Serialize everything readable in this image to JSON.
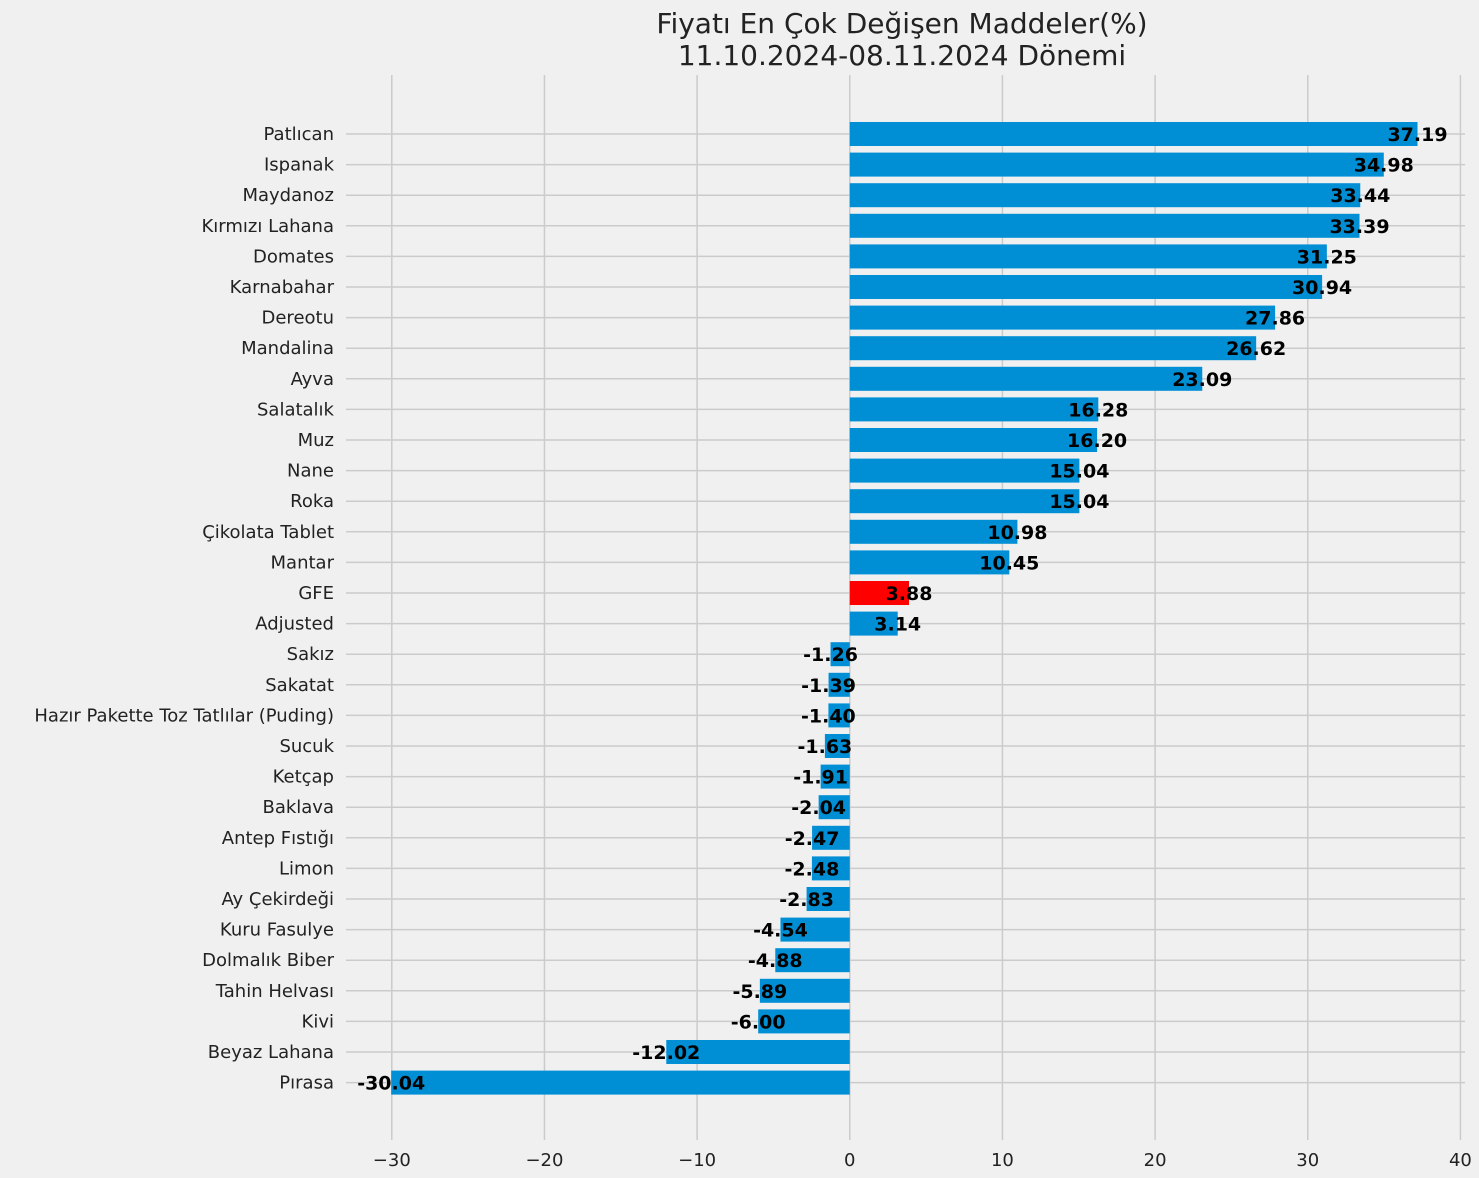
{
  "chart_data": {
    "type": "bar",
    "orientation": "horizontal",
    "title": "Fiyatı En Çok Değişen Maddeler(%)",
    "subtitle": "11.10.2024-08.11.2024 Dönemi",
    "xlabel": "",
    "ylabel": "",
    "xlim": [
      -33,
      40.3
    ],
    "xticks": [
      -30,
      -20,
      -10,
      0,
      10,
      20,
      30,
      40
    ],
    "xtick_labels": [
      "−30",
      "−20",
      "−10",
      "0",
      "10",
      "20",
      "30",
      "40"
    ],
    "grid": true,
    "colors": {
      "default": "#008fd5",
      "highlight": "#ff0000",
      "background": "#f0f0f0",
      "grid": "#cbcbcb"
    },
    "categories": [
      "Patlıcan",
      "Ispanak",
      "Maydanoz",
      "Kırmızı Lahana",
      "Domates",
      "Karnabahar",
      "Dereotu",
      "Mandalina",
      "Ayva",
      "Salatalık",
      "Muz",
      "Nane",
      "Roka",
      "Çikolata Tablet",
      "Mantar",
      "GFE",
      "Adjusted",
      "Sakız",
      "Sakatat",
      "Hazır Pakette Toz Tatlılar (Puding)",
      "Sucuk",
      "Ketçap",
      "Baklava",
      "Antep Fıstığı",
      "Limon",
      "Ay Çekirdeği",
      "Kuru Fasulye",
      "Dolmalık Biber",
      "Tahin Helvası",
      "Kivi",
      "Beyaz Lahana",
      "Pırasa"
    ],
    "values": [
      37.19,
      34.98,
      33.44,
      33.39,
      31.25,
      30.94,
      27.86,
      26.62,
      23.09,
      16.28,
      16.2,
      15.04,
      15.04,
      10.98,
      10.45,
      3.88,
      3.14,
      -1.26,
      -1.39,
      -1.4,
      -1.63,
      -1.91,
      -2.04,
      -2.47,
      -2.48,
      -2.83,
      -4.54,
      -4.88,
      -5.89,
      -6.0,
      -12.02,
      -30.04
    ],
    "value_labels": [
      "37.19",
      "34.98",
      "33.44",
      "33.39",
      "31.25",
      "30.94",
      "27.86",
      "26.62",
      "23.09",
      "16.28",
      "16.20",
      "15.04",
      "15.04",
      "10.98",
      "10.45",
      "3.88",
      "3.14",
      "-1.26",
      "-1.39",
      "-1.40",
      "-1.63",
      "-1.91",
      "-2.04",
      "-2.47",
      "-2.48",
      "-2.83",
      "-4.54",
      "-4.88",
      "-5.89",
      "-6.00",
      "-12.02",
      "-30.04"
    ],
    "highlight_category": "GFE"
  }
}
